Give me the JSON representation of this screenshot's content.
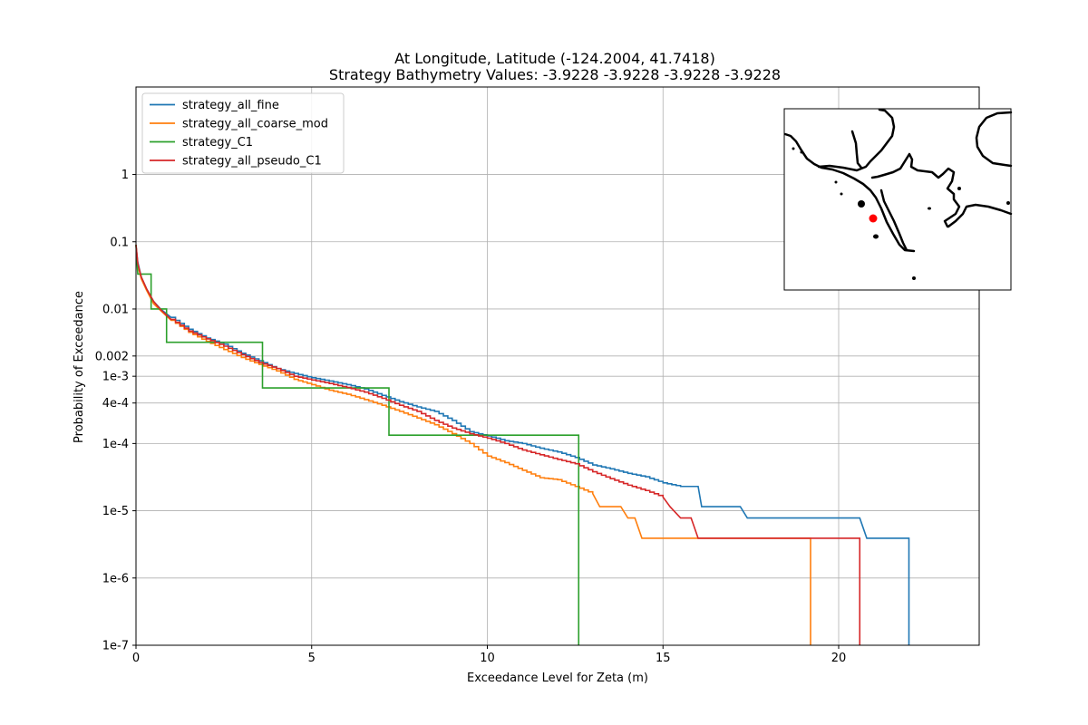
{
  "chart_data": {
    "type": "line",
    "title": "At Longitude, Latitude (-124.2004,  41.7418)",
    "subtitle": "Strategy Bathymetry Values:   -3.9228   -3.9228   -3.9228   -3.9228",
    "xlabel": "Exceedance Level for Zeta (m)",
    "ylabel": "Probability of Exceedance",
    "xlim": [
      0,
      24
    ],
    "ylim": [
      1e-07,
      20
    ],
    "yscale": "log",
    "grid": true,
    "legend_position": "top-left",
    "x_ticks": [
      {
        "value": 0,
        "label": "0"
      },
      {
        "value": 5,
        "label": "5"
      },
      {
        "value": 10,
        "label": "10"
      },
      {
        "value": 15,
        "label": "15"
      },
      {
        "value": 20,
        "label": "20"
      }
    ],
    "y_ticks": [
      {
        "value": 1,
        "label": "1"
      },
      {
        "value": 0.1,
        "label": "0.1"
      },
      {
        "value": 0.01,
        "label": "0.01"
      },
      {
        "value": 0.002,
        "label": "0.002"
      },
      {
        "value": 0.001,
        "label": "1e-3"
      },
      {
        "value": 0.0004,
        "label": "4e-4"
      },
      {
        "value": 0.0001,
        "label": "1e-4"
      },
      {
        "value": 1e-05,
        "label": "1e-5"
      },
      {
        "value": 1e-06,
        "label": "1e-6"
      },
      {
        "value": 1e-07,
        "label": "1e-7"
      }
    ],
    "series": [
      {
        "name": "strategy_all_fine",
        "color": "#1f77b4",
        "step": false,
        "points": [
          [
            0.0,
            0.09
          ],
          [
            0.05,
            0.05
          ],
          [
            0.15,
            0.03
          ],
          [
            0.3,
            0.02
          ],
          [
            0.5,
            0.013
          ],
          [
            0.7,
            0.01
          ],
          [
            1.0,
            0.0075
          ],
          [
            1.5,
            0.005
          ],
          [
            2.0,
            0.0037
          ],
          [
            2.5,
            0.003
          ],
          [
            3.0,
            0.0022
          ],
          [
            3.5,
            0.0017
          ],
          [
            4.0,
            0.0013
          ],
          [
            4.5,
            0.0011
          ],
          [
            5.0,
            0.00095
          ],
          [
            5.5,
            0.00085
          ],
          [
            6.0,
            0.00075
          ],
          [
            6.5,
            0.00065
          ],
          [
            7.0,
            0.00052
          ],
          [
            7.5,
            0.00042
          ],
          [
            8.0,
            0.00035
          ],
          [
            8.5,
            0.0003
          ],
          [
            9.0,
            0.00022
          ],
          [
            9.5,
            0.00015
          ],
          [
            10.0,
            0.00013
          ],
          [
            10.5,
            0.00011
          ],
          [
            11.0,
            0.0001
          ],
          [
            11.5,
            8.5e-05
          ],
          [
            12.0,
            7.5e-05
          ],
          [
            12.5,
            6.2e-05
          ],
          [
            13.0,
            4.8e-05
          ],
          [
            13.5,
            4.2e-05
          ],
          [
            14.0,
            3.6e-05
          ],
          [
            14.5,
            3.2e-05
          ],
          [
            15.0,
            2.6e-05
          ],
          [
            15.5,
            2.3e-05
          ],
          [
            16.0,
            2.3e-05
          ],
          [
            16.1,
            1.15e-05
          ],
          [
            17.2,
            1.15e-05
          ],
          [
            17.4,
            7.8e-06
          ],
          [
            20.6,
            7.8e-06
          ],
          [
            20.8,
            3.9e-06
          ],
          [
            22.0,
            3.9e-06
          ],
          [
            22.0,
            1e-07
          ]
        ]
      },
      {
        "name": "strategy_all_coarse_mod",
        "color": "#ff7f0e",
        "step": false,
        "points": [
          [
            0.0,
            0.09
          ],
          [
            0.05,
            0.045
          ],
          [
            0.15,
            0.028
          ],
          [
            0.3,
            0.019
          ],
          [
            0.5,
            0.012
          ],
          [
            0.7,
            0.0095
          ],
          [
            1.0,
            0.0068
          ],
          [
            1.5,
            0.0045
          ],
          [
            2.0,
            0.0033
          ],
          [
            2.5,
            0.0025
          ],
          [
            3.0,
            0.0019
          ],
          [
            3.5,
            0.0015
          ],
          [
            4.0,
            0.0012
          ],
          [
            4.5,
            0.0009
          ],
          [
            5.0,
            0.00075
          ],
          [
            5.5,
            0.00062
          ],
          [
            6.0,
            0.00054
          ],
          [
            6.5,
            0.00045
          ],
          [
            7.0,
            0.00037
          ],
          [
            7.5,
            0.0003
          ],
          [
            8.0,
            0.00024
          ],
          [
            8.5,
            0.00019
          ],
          [
            9.0,
            0.00014
          ],
          [
            9.5,
            0.0001
          ],
          [
            10.0,
            6.5e-05
          ],
          [
            10.5,
            5.2e-05
          ],
          [
            11.0,
            4e-05
          ],
          [
            11.5,
            3.1e-05
          ],
          [
            12.0,
            2.9e-05
          ],
          [
            12.5,
            2.3e-05
          ],
          [
            13.0,
            1.8e-05
          ],
          [
            13.2,
            1.15e-05
          ],
          [
            13.8,
            1.15e-05
          ],
          [
            14.0,
            7.8e-06
          ],
          [
            14.2,
            7.8e-06
          ],
          [
            14.4,
            3.9e-06
          ],
          [
            19.2,
            3.9e-06
          ],
          [
            19.2,
            1e-07
          ]
        ]
      },
      {
        "name": "strategy_C1",
        "color": "#2ca02c",
        "step": true,
        "points": [
          [
            0.0,
            0.09
          ],
          [
            0.05,
            0.033
          ],
          [
            0.43,
            0.033
          ],
          [
            0.43,
            0.01
          ],
          [
            0.87,
            0.01
          ],
          [
            0.87,
            0.0032
          ],
          [
            3.6,
            0.0032
          ],
          [
            3.6,
            0.00067
          ],
          [
            7.2,
            0.00067
          ],
          [
            7.2,
            0.000133
          ],
          [
            12.6,
            0.000133
          ],
          [
            12.6,
            1e-07
          ]
        ]
      },
      {
        "name": "strategy_all_pseudo_C1",
        "color": "#d62728",
        "step": false,
        "points": [
          [
            0.0,
            0.09
          ],
          [
            0.05,
            0.048
          ],
          [
            0.15,
            0.03
          ],
          [
            0.3,
            0.02
          ],
          [
            0.5,
            0.013
          ],
          [
            0.7,
            0.0098
          ],
          [
            1.0,
            0.007
          ],
          [
            1.5,
            0.0047
          ],
          [
            2.0,
            0.0036
          ],
          [
            2.5,
            0.0028
          ],
          [
            3.0,
            0.0021
          ],
          [
            3.5,
            0.0016
          ],
          [
            4.0,
            0.0013
          ],
          [
            4.5,
            0.001
          ],
          [
            5.0,
            0.00088
          ],
          [
            5.5,
            0.00078
          ],
          [
            6.0,
            0.00068
          ],
          [
            6.5,
            0.00058
          ],
          [
            7.0,
            0.00047
          ],
          [
            7.5,
            0.00037
          ],
          [
            8.0,
            0.0003
          ],
          [
            8.5,
            0.00022
          ],
          [
            9.0,
            0.00017
          ],
          [
            9.5,
            0.00014
          ],
          [
            10.0,
            0.00012
          ],
          [
            10.5,
            0.0001
          ],
          [
            11.0,
            8e-05
          ],
          [
            11.5,
            6.8e-05
          ],
          [
            12.0,
            5.8e-05
          ],
          [
            12.5,
            5e-05
          ],
          [
            13.0,
            3.8e-05
          ],
          [
            13.5,
            3e-05
          ],
          [
            14.0,
            2.4e-05
          ],
          [
            14.5,
            2e-05
          ],
          [
            15.0,
            1.6e-05
          ],
          [
            15.2,
            1.15e-05
          ],
          [
            15.5,
            7.8e-06
          ],
          [
            15.8,
            7.8e-06
          ],
          [
            16.0,
            3.9e-06
          ],
          [
            20.6,
            3.9e-06
          ],
          [
            20.6,
            1e-07
          ]
        ]
      }
    ],
    "inset_map": {
      "position": "top-right",
      "marker_color": "#ff0000"
    }
  }
}
